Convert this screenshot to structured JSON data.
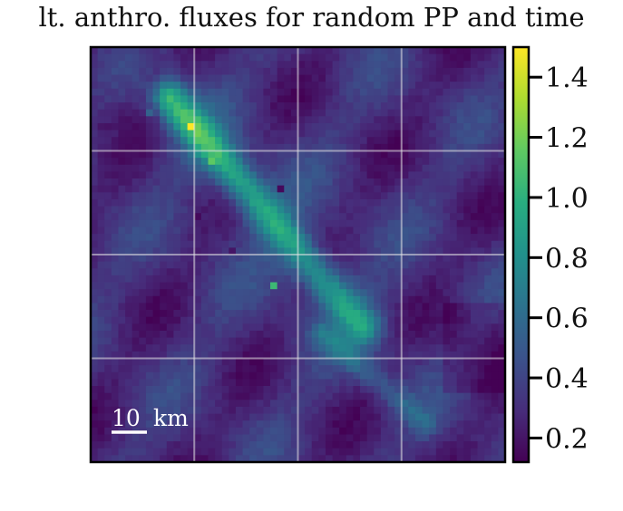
{
  "chart_data": {
    "type": "heatmap",
    "title": "lt. anthro. fluxes for random PP and time",
    "xlabel": "",
    "ylabel": "",
    "grid": true,
    "colormap": "viridis",
    "colorbar": {
      "ticks": [
        1.4,
        1.2,
        1.0,
        0.8,
        0.6,
        0.4,
        0.2
      ],
      "tick_labels": [
        "1.4",
        "1.2",
        "1.0",
        "0.8",
        "0.6",
        "0.4",
        "0.2"
      ],
      "range": [
        0.12,
        1.5
      ]
    },
    "scale_bar": {
      "label_number": "10",
      "label_unit": "km"
    },
    "features": {
      "background_level": 0.3,
      "plume_main": {
        "from_cell": [
          11,
          7
        ],
        "to_cell": [
          39,
          40
        ],
        "peak": 0.95
      },
      "plume_secondary": {
        "from_cell": [
          33,
          41
        ],
        "to_cell": [
          48,
          54
        ],
        "peak": 0.6
      },
      "hotspots": [
        {
          "cell": [
            14,
            11
          ],
          "value": 1.5
        },
        {
          "cell": [
            15,
            12
          ],
          "value": 1.2
        },
        {
          "cell": [
            17,
            16
          ],
          "value": 1.15
        },
        {
          "cell": [
            26,
            34
          ],
          "value": 1.05
        },
        {
          "cell": [
            8,
            9
          ],
          "value": 0.55
        }
      ],
      "dark_spots": [
        {
          "cell": [
            15,
            24
          ],
          "value": 0.15
        },
        {
          "cell": [
            27,
            20
          ],
          "value": 0.15
        },
        {
          "cell": [
            20,
            29
          ],
          "value": 0.2
        }
      ],
      "grid_cells": 60
    }
  }
}
